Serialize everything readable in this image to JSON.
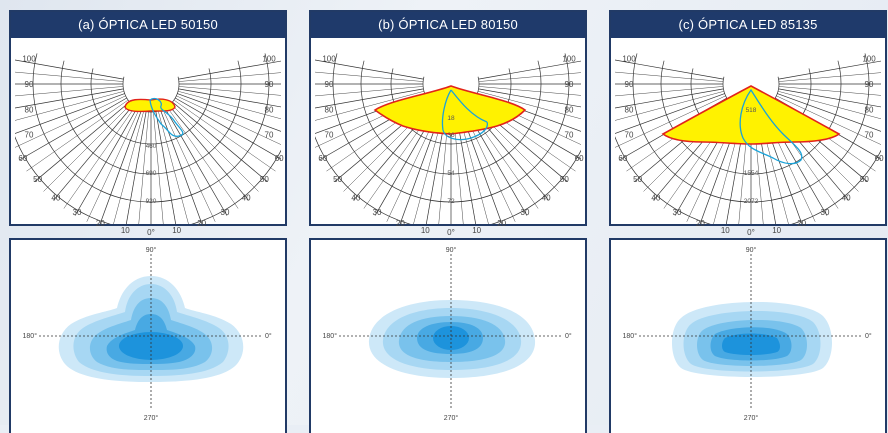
{
  "panels": [
    {
      "title": "(a) ÓPTICA LED 50150",
      "polar": {
        "angle_labels": [
          "100",
          "90",
          "80",
          "70",
          "60",
          "50",
          "40",
          "30",
          "20",
          "10",
          "0°",
          "10",
          "20",
          "30",
          "40",
          "50",
          "60",
          "70",
          "80",
          "90",
          "100"
        ],
        "intensity_labels": [
          "460",
          "690",
          "920"
        ]
      },
      "contour": {
        "top": "90°",
        "left": "180°",
        "right": "0°",
        "bottom": "270°"
      }
    },
    {
      "title": "(b) ÓPTICA LED 80150",
      "polar": {
        "angle_labels": [
          "100",
          "90",
          "80",
          "70",
          "60",
          "50",
          "40",
          "30",
          "20",
          "10",
          "0°",
          "10",
          "20",
          "30",
          "40",
          "50",
          "60",
          "70",
          "80",
          "90",
          "100"
        ],
        "intensity_labels": [
          "18",
          "36",
          "54",
          "72"
        ]
      },
      "contour": {
        "top": "90°",
        "left": "180°",
        "right": "0°",
        "bottom": "270°"
      }
    },
    {
      "title": "(c) ÓPTICA LED 85135",
      "polar": {
        "angle_labels": [
          "100",
          "90",
          "80",
          "70",
          "60",
          "50",
          "40",
          "30",
          "20",
          "10",
          "0°",
          "10",
          "20",
          "30",
          "40",
          "50",
          "60",
          "70",
          "80",
          "90",
          "100"
        ],
        "intensity_labels": [
          "518",
          "1554",
          "2072"
        ]
      },
      "contour": {
        "top": "90°",
        "left": "180°",
        "right": "0°",
        "bottom": "270°"
      }
    }
  ],
  "colors": {
    "header": "#1f3a6b",
    "yellow_fill": "#fff200",
    "red_curve": "#e2231a",
    "cyan_curve": "#1aa3d9",
    "blue_levels": [
      "#cde8f8",
      "#a7d7f3",
      "#79c2ec",
      "#48a9e3",
      "#1d93dc"
    ]
  }
}
